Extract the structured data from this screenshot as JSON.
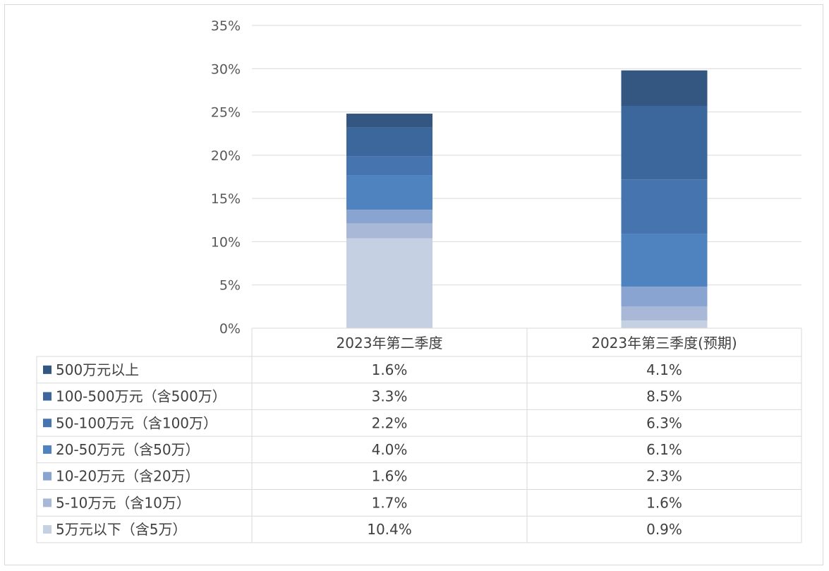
{
  "chart_data": {
    "type": "bar",
    "stacked": true,
    "categories": [
      "2023年第二季度",
      "2023年第三季度(预期)"
    ],
    "ylim": [
      0,
      35
    ],
    "yticks": [
      "0%",
      "5%",
      "10%",
      "15%",
      "20%",
      "25%",
      "30%",
      "35%"
    ],
    "grid": true,
    "legend": "data-table-left",
    "series": [
      {
        "name": "5万元以下（含5万）",
        "values": [
          10.4,
          0.9
        ],
        "labels": [
          "10.4%",
          "0.9%"
        ],
        "color": "#c5d0e2"
      },
      {
        "name": "5-10万元（含10万）",
        "values": [
          1.7,
          1.6
        ],
        "labels": [
          "1.7%",
          "1.6%"
        ],
        "color": "#a9b8d7"
      },
      {
        "name": "10-20万元（含20万）",
        "values": [
          1.6,
          2.3
        ],
        "labels": [
          "1.6%",
          "2.3%"
        ],
        "color": "#89a4d0"
      },
      {
        "name": "20-50万元（含50万）",
        "values": [
          4.0,
          6.1
        ],
        "labels": [
          "4.0%",
          "6.1%"
        ],
        "color": "#4f83c0"
      },
      {
        "name": "50-100万元（含100万）",
        "values": [
          2.2,
          6.3
        ],
        "labels": [
          "2.2%",
          "6.3%"
        ],
        "color": "#4674ae"
      },
      {
        "name": "100-500万元（含500万）",
        "values": [
          3.3,
          8.5
        ],
        "labels": [
          "3.3%",
          "8.5%"
        ],
        "color": "#3c679c"
      },
      {
        "name": "500万元以上",
        "values": [
          1.6,
          4.1
        ],
        "labels": [
          "1.6%",
          "4.1%"
        ],
        "color": "#335781"
      }
    ]
  }
}
